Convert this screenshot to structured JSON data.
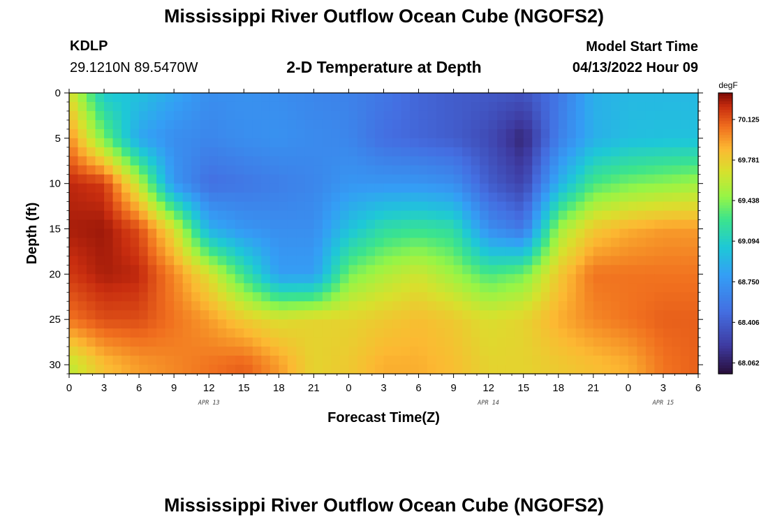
{
  "header": {
    "title": "Mississippi River Outflow Ocean Cube (NGOFS2)",
    "station_id": "KDLP",
    "station_coords": "29.1210N  89.5470W",
    "subtitle": "2-D Temperature at Depth",
    "model_start_label": "Model Start Time",
    "model_start_time": "04/13/2022 Hour 09"
  },
  "footer": {
    "title": "Mississippi River Outflow Ocean Cube (NGOFS2)"
  },
  "chart_data": {
    "type": "heatmap",
    "title": "2-D Temperature at Depth",
    "xlabel": "Forecast Time(Z)",
    "ylabel": "Depth (ft)",
    "x_tick_labels": [
      "0",
      "3",
      "6",
      "9",
      "12",
      "15",
      "18",
      "21",
      "0",
      "3",
      "6",
      "9",
      "12",
      "15",
      "18",
      "21",
      "0",
      "3",
      "6"
    ],
    "x_tick_hours": [
      0,
      3,
      6,
      9,
      12,
      15,
      18,
      21,
      24,
      27,
      30,
      33,
      36,
      39,
      42,
      45,
      48,
      51,
      54
    ],
    "xlim": [
      0,
      54
    ],
    "date_labels": [
      {
        "label": "APR 13",
        "hour": 12
      },
      {
        "label": "APR 14",
        "hour": 36
      },
      {
        "label": "APR 15",
        "hour": 51
      }
    ],
    "y_ticks": [
      0,
      5,
      10,
      15,
      20,
      25,
      30
    ],
    "ylim": [
      0,
      31
    ],
    "y_inverted": true,
    "colorbar": {
      "unit": "degF",
      "tick_labels": [
        "70.125",
        "69.781",
        "69.438",
        "69.094",
        "68.750",
        "68.406",
        "68.062"
      ],
      "tick_values": [
        70.125,
        69.781,
        69.438,
        69.094,
        68.75,
        68.406,
        68.062
      ],
      "range": [
        67.97,
        70.35
      ]
    },
    "grid_times_h": [
      0,
      3,
      6,
      9,
      12,
      15,
      18,
      21,
      24,
      27,
      30,
      33,
      36,
      39,
      42,
      45,
      48,
      51,
      54
    ],
    "grid_depths_ft": [
      0,
      5,
      10,
      15,
      20,
      25,
      30
    ],
    "values_degF": [
      [
        69.7,
        69.05,
        69.0,
        68.85,
        68.7,
        68.72,
        68.7,
        68.65,
        68.62,
        68.55,
        68.45,
        68.4,
        68.38,
        68.35,
        68.55,
        68.9,
        68.95,
        68.95,
        68.95
      ],
      [
        70.0,
        69.4,
        68.85,
        68.7,
        68.65,
        68.7,
        68.72,
        68.68,
        68.65,
        68.5,
        68.45,
        68.4,
        68.3,
        68.1,
        68.6,
        68.9,
        68.98,
        69.0,
        69.0
      ],
      [
        70.25,
        70.2,
        69.6,
        68.75,
        68.5,
        68.55,
        68.6,
        68.65,
        68.75,
        68.75,
        68.75,
        68.7,
        68.4,
        68.25,
        68.9,
        69.3,
        69.4,
        69.45,
        69.5
      ],
      [
        70.28,
        70.3,
        70.15,
        69.7,
        68.9,
        68.75,
        68.7,
        68.7,
        69.0,
        69.2,
        69.25,
        69.2,
        68.7,
        68.55,
        69.5,
        69.8,
        69.9,
        69.95,
        69.95
      ],
      [
        70.2,
        70.28,
        70.25,
        70.0,
        69.7,
        69.25,
        68.8,
        68.8,
        69.4,
        69.55,
        69.65,
        69.5,
        69.3,
        69.4,
        69.8,
        70.05,
        70.05,
        70.05,
        70.05
      ],
      [
        70.05,
        70.15,
        70.15,
        70.05,
        69.95,
        69.8,
        69.7,
        69.75,
        69.75,
        69.8,
        69.85,
        69.8,
        69.7,
        69.75,
        69.9,
        70.0,
        70.05,
        70.1,
        70.1
      ],
      [
        69.6,
        69.85,
        69.95,
        70.0,
        70.05,
        70.1,
        69.95,
        69.75,
        69.8,
        69.9,
        69.9,
        69.85,
        69.75,
        69.75,
        69.8,
        69.85,
        69.9,
        70.05,
        70.1
      ]
    ]
  }
}
